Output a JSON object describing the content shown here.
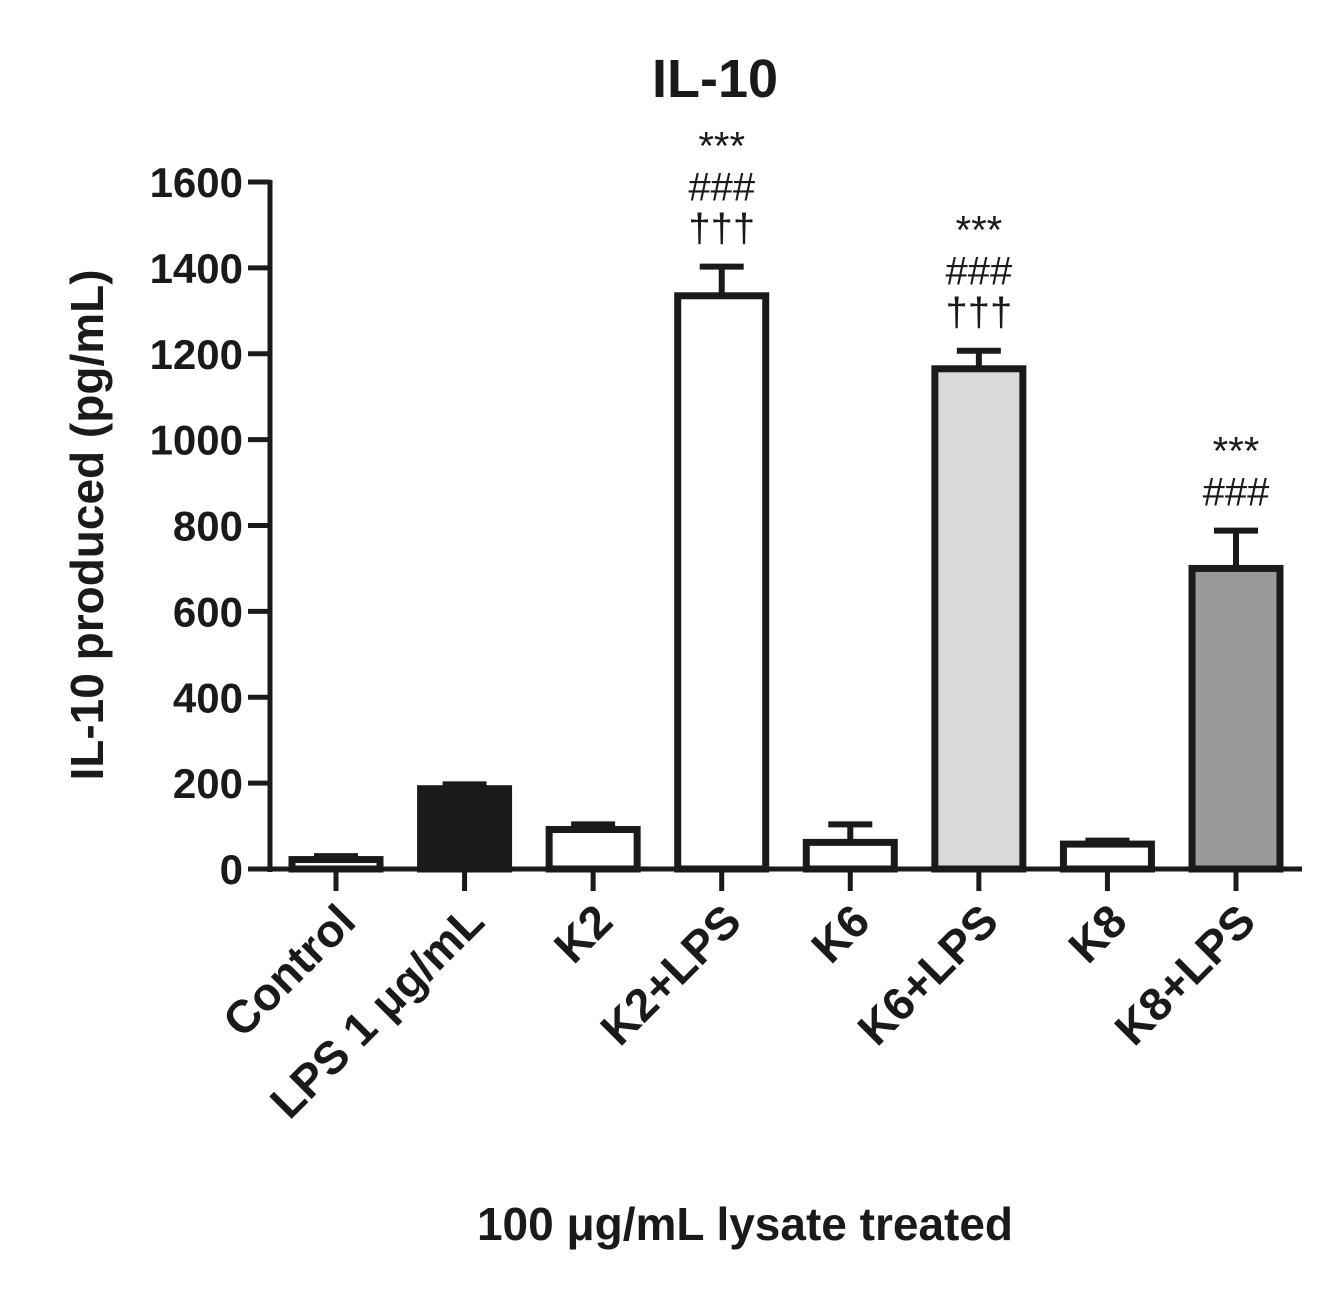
{
  "chart_data": {
    "type": "bar",
    "title": "IL-10",
    "ylabel": "IL-10 produced (pg/mL)",
    "xlabel": "100 μg/mL lysate treated",
    "ylim": [
      0,
      1600
    ],
    "yticks": [
      0,
      200,
      400,
      600,
      800,
      1000,
      1200,
      1400,
      1600
    ],
    "grid": false,
    "legend": "none",
    "categories": [
      "Control",
      "LPS 1 μg/mL",
      "K2",
      "K2+LPS",
      "K6",
      "K6+LPS",
      "K8",
      "K8+LPS"
    ],
    "values": [
      22,
      187,
      92,
      1335,
      62,
      1165,
      58,
      700
    ],
    "errors": [
      8,
      10,
      12,
      68,
      42,
      42,
      8,
      88
    ],
    "fill_colors": [
      "#ffffff",
      "#1a1a1a",
      "#ffffff",
      "#ffffff",
      "#ffffff",
      "#d9d9d9",
      "#ffffff",
      "#999999"
    ],
    "annotations": [
      [],
      [],
      [],
      [
        "***",
        "###",
        "†††"
      ],
      [],
      [
        "***",
        "###",
        "†††"
      ],
      [],
      [
        "***",
        "###"
      ]
    ]
  }
}
